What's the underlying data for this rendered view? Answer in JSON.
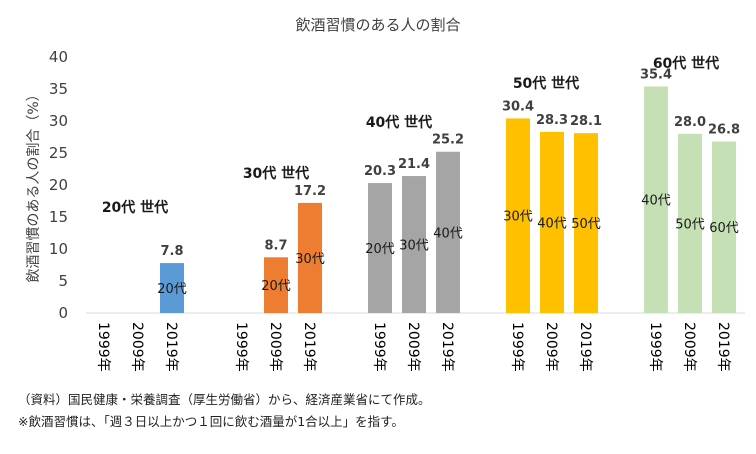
{
  "chart_data": {
    "type": "bar",
    "title": "飲酒習慣のある人の割合",
    "ylabel": "飲酒習慣のある人の割合（%）",
    "xlabel": "",
    "ylim": [
      0,
      40
    ],
    "yticks": [
      0,
      5,
      10,
      15,
      20,
      25,
      30,
      35,
      40
    ],
    "grid": false,
    "groups": [
      {
        "name": "20代 世代",
        "color": "#5B9BD5",
        "bars": [
          {
            "year": "1999年",
            "value": null,
            "inner_label": ""
          },
          {
            "year": "2009年",
            "value": null,
            "inner_label": ""
          },
          {
            "year": "2019年",
            "value": 7.8,
            "inner_label": "20代"
          }
        ]
      },
      {
        "name": "30代 世代",
        "color": "#ED7D31",
        "bars": [
          {
            "year": "1999年",
            "value": null,
            "inner_label": ""
          },
          {
            "year": "2009年",
            "value": 8.7,
            "inner_label": "20代"
          },
          {
            "year": "2019年",
            "value": 17.2,
            "inner_label": "30代"
          }
        ]
      },
      {
        "name": "40代 世代",
        "color": "#A5A5A5",
        "bars": [
          {
            "year": "1999年",
            "value": 20.3,
            "inner_label": "20代"
          },
          {
            "year": "2009年",
            "value": 21.4,
            "inner_label": "30代"
          },
          {
            "year": "2019年",
            "value": 25.2,
            "inner_label": "40代"
          }
        ]
      },
      {
        "name": "50代 世代",
        "color": "#FFC000",
        "bars": [
          {
            "year": "1999年",
            "value": 30.4,
            "inner_label": "30代"
          },
          {
            "year": "2009年",
            "value": 28.3,
            "inner_label": "40代"
          },
          {
            "year": "2019年",
            "value": 28.1,
            "inner_label": "50代"
          }
        ]
      },
      {
        "name": "60代 世代",
        "color": "#C5E0B4",
        "bars": [
          {
            "year": "1999年",
            "value": 35.4,
            "inner_label": "40代"
          },
          {
            "year": "2009年",
            "value": 28.0,
            "inner_label": "50代"
          },
          {
            "year": "2019年",
            "value": 26.8,
            "inner_label": "60代"
          }
        ]
      }
    ]
  },
  "notes": {
    "source": "（資料）国民健康・栄養調査（厚生労働省）から、経済産業省にて作成。",
    "footnote": "※飲酒習慣は、「週３日以上かつ１回に飲む酒量が1合以上」を指す。"
  }
}
